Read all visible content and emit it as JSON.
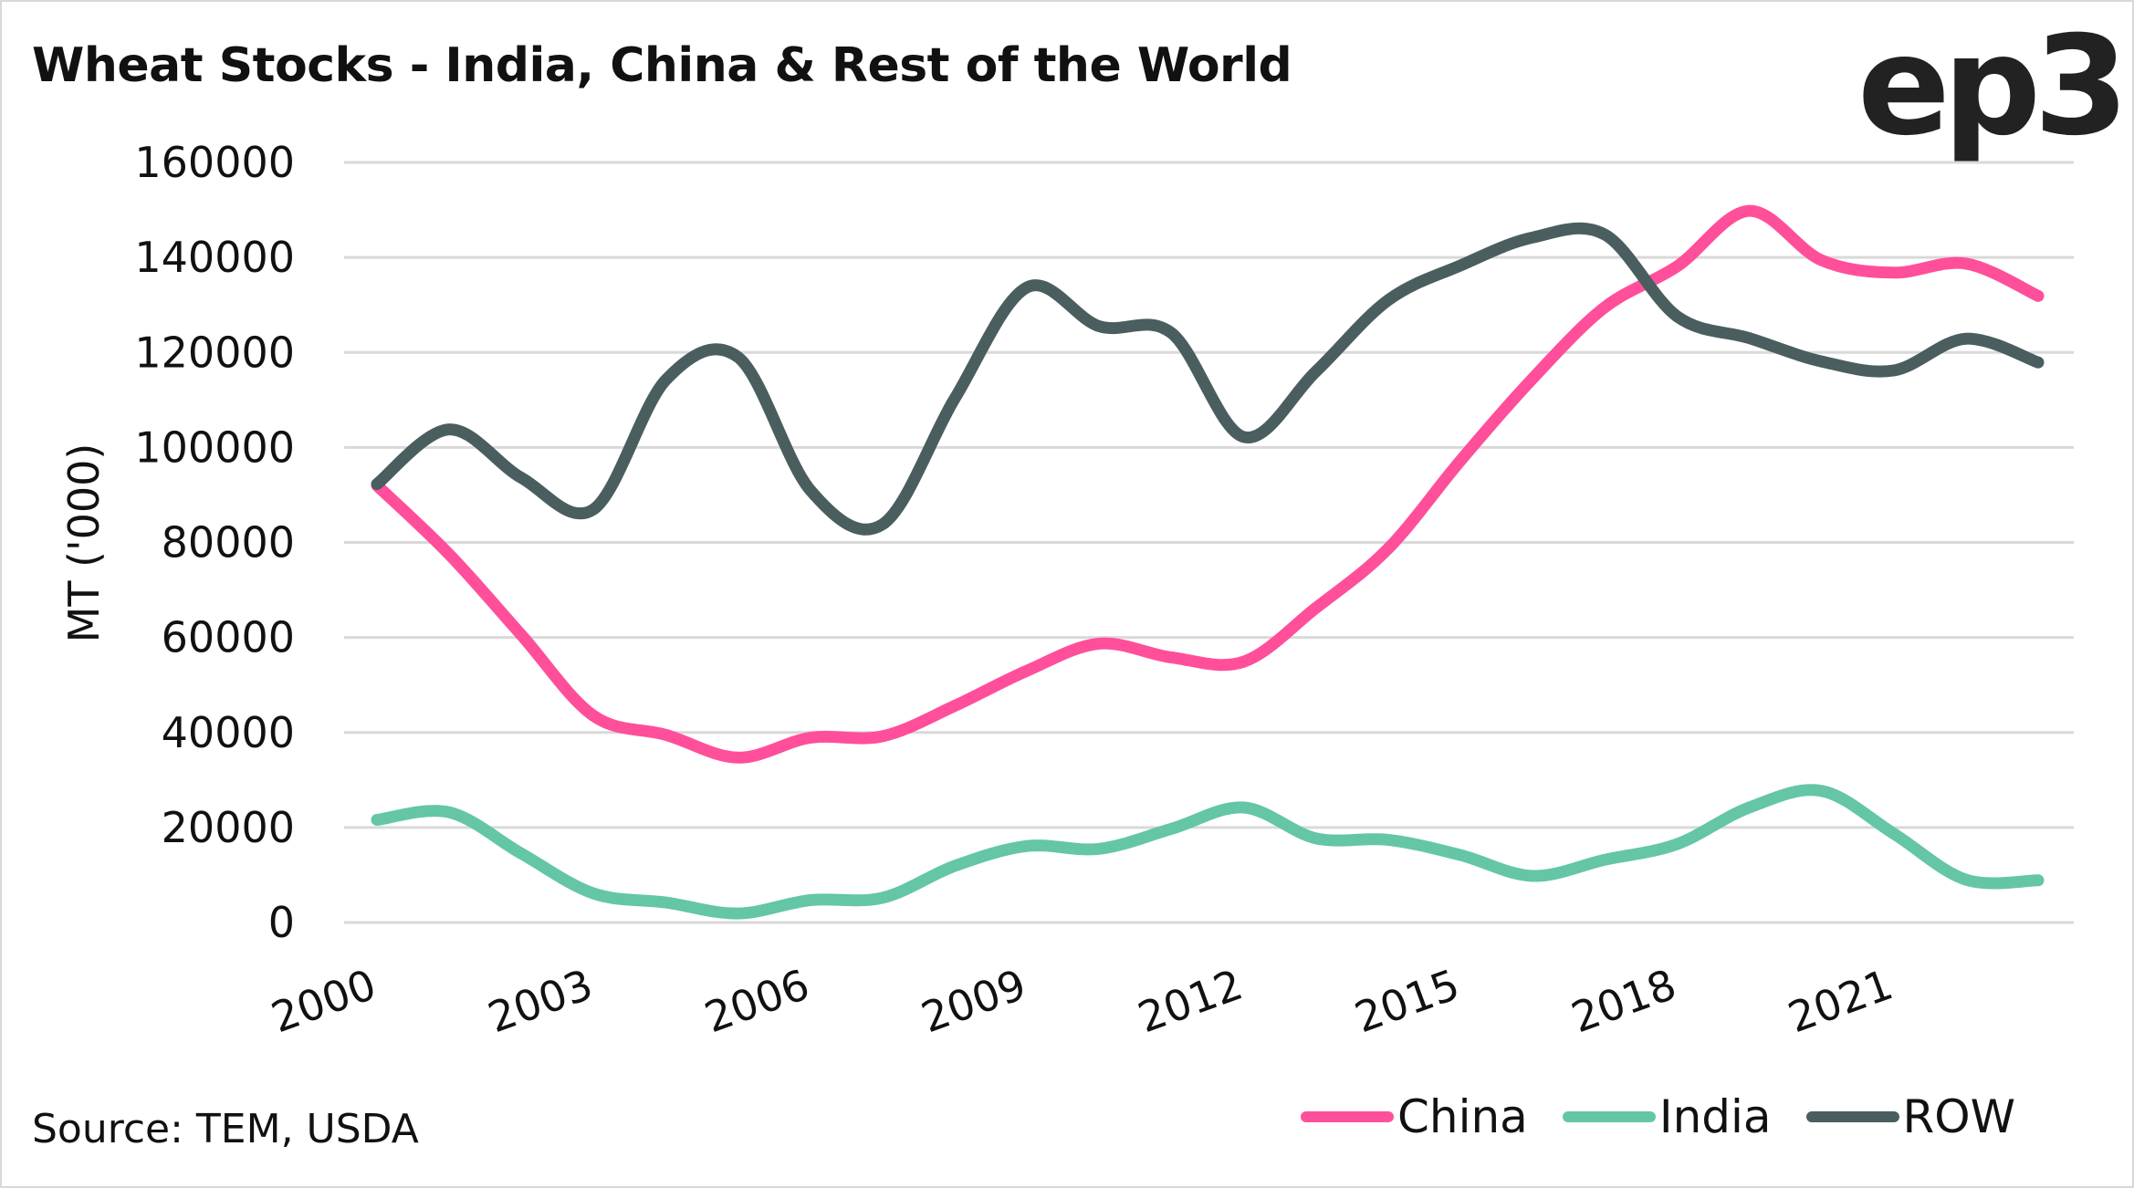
{
  "title": "Wheat Stocks - India, China & Rest of the World",
  "logo": "ep3",
  "source": "Source: TEM, USDA",
  "colors": {
    "China": "#FF4F9A",
    "India": "#64C6A6",
    "ROW": "#4B5E5F",
    "grid": "#D9D9D9"
  },
  "chart_data": {
    "type": "line",
    "title": "Wheat Stocks - India, China & Rest of the World",
    "xlabel": "",
    "ylabel": "MT ('000)",
    "ylim": [
      0,
      160000
    ],
    "yticks": [
      0,
      20000,
      40000,
      60000,
      80000,
      100000,
      120000,
      140000,
      160000
    ],
    "ytick_labels": [
      "0",
      "20000",
      "40000",
      "60000",
      "80000",
      "100000",
      "120000",
      "140000",
      "160000"
    ],
    "x": [
      2000,
      2001,
      2002,
      2003,
      2004,
      2005,
      2006,
      2007,
      2008,
      2009,
      2010,
      2011,
      2012,
      2013,
      2014,
      2015,
      2016,
      2017,
      2018,
      2019,
      2020,
      2021,
      2022,
      2023
    ],
    "xtick_labels": [
      "2000",
      "2003",
      "2006",
      "2009",
      "2012",
      "2015",
      "2018",
      "2021"
    ],
    "xtick_values": [
      2000,
      2003,
      2006,
      2009,
      2012,
      2015,
      2018,
      2021
    ],
    "grid": true,
    "smooth": true,
    "legend_position": "bottom-right",
    "series": [
      {
        "name": "China",
        "values": [
          92000,
          77500,
          60500,
          43500,
          39500,
          34700,
          38900,
          39200,
          45600,
          53000,
          58700,
          55800,
          54900,
          66200,
          78700,
          97200,
          114500,
          129500,
          138100,
          149800,
          139400,
          136800,
          138700,
          131900
        ]
      },
      {
        "name": "India",
        "values": [
          21600,
          23200,
          14500,
          6100,
          4200,
          1900,
          4700,
          5200,
          11900,
          16100,
          15500,
          19700,
          24200,
          17700,
          17400,
          14200,
          9800,
          13200,
          16500,
          24200,
          27700,
          18700,
          9000,
          8900
        ]
      },
      {
        "name": "ROW",
        "values": [
          92300,
          103800,
          93600,
          87000,
          114200,
          119000,
          91000,
          83800,
          110300,
          133700,
          125500,
          124100,
          102200,
          116000,
          131000,
          138300,
          144200,
          144800,
          127600,
          123000,
          118100,
          116200,
          122900,
          117900
        ]
      }
    ]
  }
}
